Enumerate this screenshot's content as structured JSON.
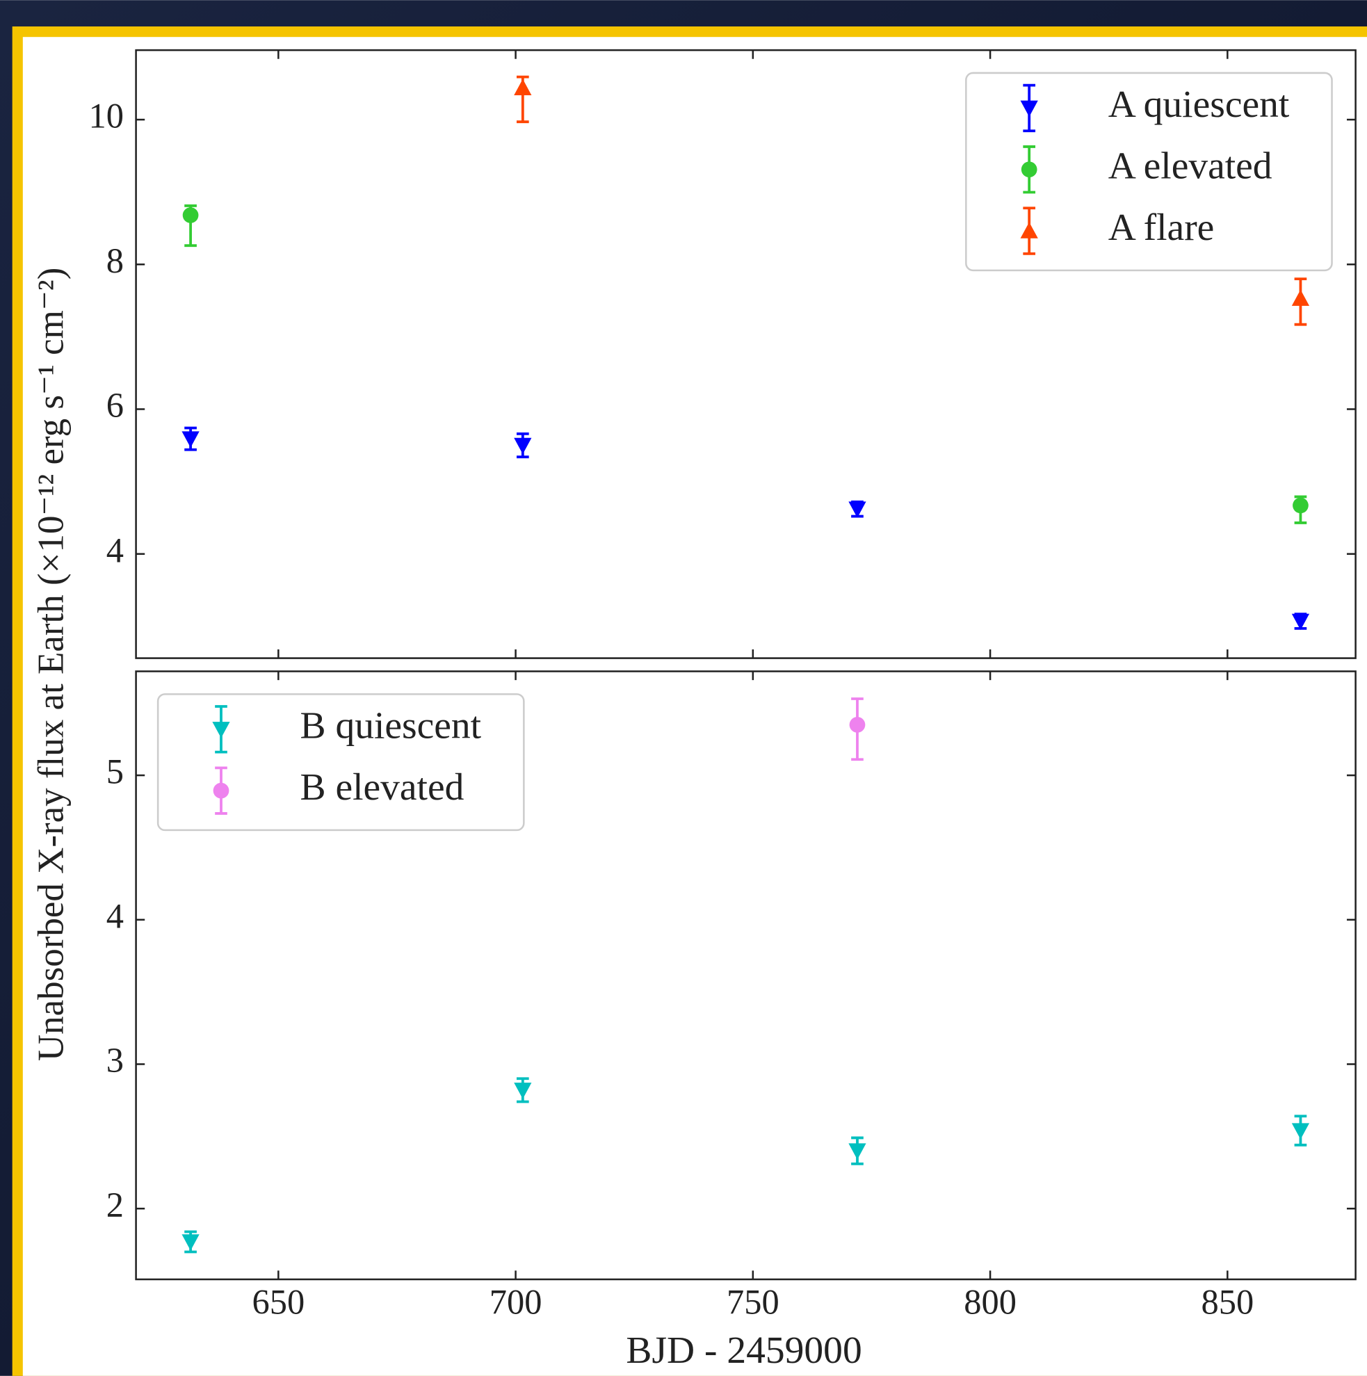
{
  "chart_data": [
    {
      "type": "scatter",
      "ylabel": "Unabsorbed X-ray flux at Earth (×10⁻¹² erg s⁻¹ cm⁻²)",
      "xlim": [
        620,
        877
      ],
      "xticks": [
        650,
        700,
        750,
        800,
        850
      ],
      "ylim": [
        2.56,
        10.96
      ],
      "yticks": [
        4,
        6,
        8,
        10
      ],
      "legend": "upper right",
      "series": [
        {
          "name": "A quiescent",
          "color": "#0000ff",
          "marker": "v",
          "x": [
            631.5,
            701.5,
            772,
            865.4
          ],
          "values": [
            5.59,
            5.5,
            4.62,
            3.07
          ],
          "yerr": [
            [
              0.15,
              0.16,
              0.1,
              0.1
            ],
            [
              0.15,
              0.16,
              0.1,
              0.1
            ]
          ]
        },
        {
          "name": "A elevated",
          "color": "#33cc33",
          "marker": "o",
          "x": [
            631.5,
            865.4
          ],
          "values": [
            8.68,
            4.67
          ],
          "yerr": [
            [
              0.42,
              0.24
            ],
            [
              0.13,
              0.12
            ]
          ]
        },
        {
          "name": "A flare",
          "color": "#ff4500",
          "marker": "^",
          "x": [
            701.5,
            865.4
          ],
          "values": [
            10.44,
            7.53
          ],
          "yerr": [
            [
              0.47,
              0.36
            ],
            [
              0.15,
              0.27
            ]
          ]
        }
      ]
    },
    {
      "type": "scatter",
      "xlabel": "BJD - 2459000",
      "xlim": [
        620,
        877
      ],
      "xticks": [
        650,
        700,
        750,
        800,
        850
      ],
      "ylim": [
        1.51,
        5.72
      ],
      "yticks": [
        2,
        3,
        4,
        5
      ],
      "legend": "upper left",
      "series": [
        {
          "name": "B quiescent",
          "color": "#00bfbf",
          "marker": "v",
          "x": [
            631.5,
            701.5,
            772,
            865.4
          ],
          "values": [
            1.77,
            2.82,
            2.4,
            2.54
          ],
          "yerr": [
            [
              0.07,
              0.08,
              0.09,
              0.1
            ],
            [
              0.07,
              0.08,
              0.09,
              0.1
            ]
          ]
        },
        {
          "name": "B elevated",
          "color": "#ee82ee",
          "marker": "o",
          "x": [
            772
          ],
          "values": [
            5.35
          ],
          "yerr": [
            [
              0.24
            ],
            [
              0.18
            ]
          ]
        }
      ]
    }
  ]
}
